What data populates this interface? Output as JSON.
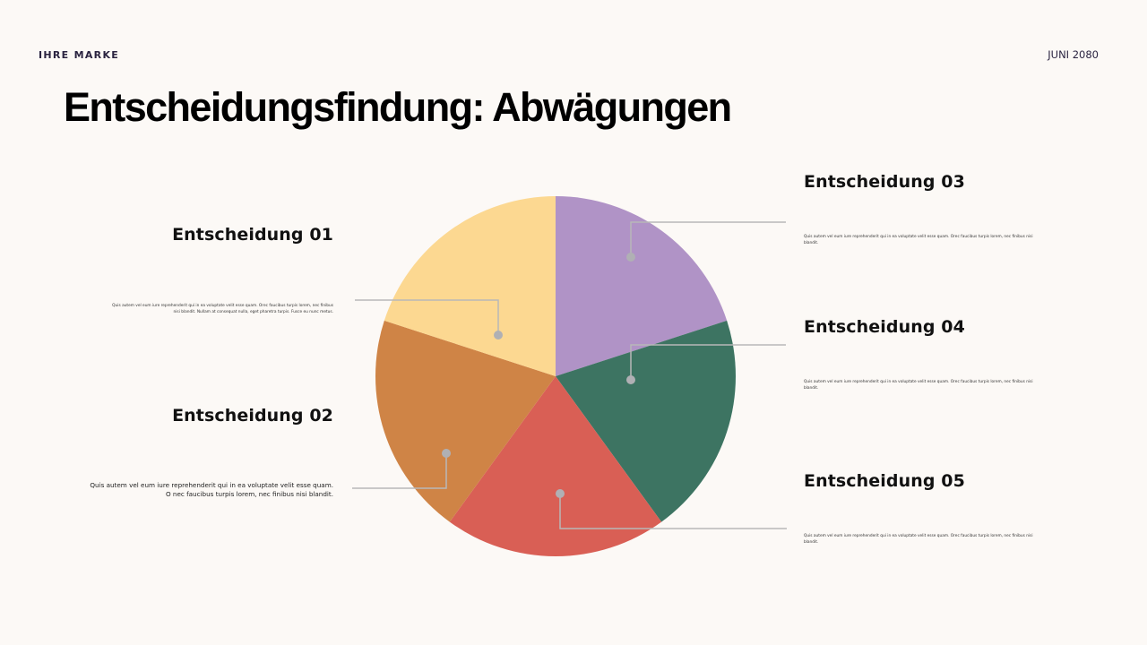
{
  "header": {
    "brand": "IHRE MARKE",
    "date": "JUNI 2080",
    "title": "Entscheidungsfindung: Abwägungen"
  },
  "decisions": [
    {
      "heading": "Entscheidung 01",
      "text": "Quis autem vel eum iure reprehenderit qui in ea voluptate velit esse quam. Orec faucibus turpis lorem, nec finibus nisi blandit. Nullam at consequat nulla, eget pharetra turpis. Fusce eu nunc metus.",
      "color": "#fcd891"
    },
    {
      "heading": "Entscheidung 02",
      "text": "Quis autem vel eum iure reprehenderit qui in ea voluptate velit esse quam. O nec faucibus turpis lorem, nec finibus nisi blandit.",
      "color": "#cf8446"
    },
    {
      "heading": "Entscheidung 03",
      "text": "Quis autem vel eum iure reprehenderit qui in ea voluptate velit esse quam. Orec faucibus turpis lorem, nec finibus nisi blandit.",
      "color": "#b093c6"
    },
    {
      "heading": "Entscheidung 04",
      "text": "Quis autem vel eum iure reprehenderit qui in ea voluptate velit esse quam. Orec faucibus turpis lorem, nec finibus nisi blandit.",
      "color": "#3d7462"
    },
    {
      "heading": "Entscheidung 05",
      "text": "Quis autem vel eum iure reprehenderit qui in ea voluptate velit esse quam. Orec faucibus turpis lorem, nec finibus nisi blandit.",
      "color": "#d95f55"
    }
  ],
  "chart_data": {
    "type": "pie",
    "title": "Entscheidungsfindung: Abwägungen",
    "categories": [
      "Entscheidung 01",
      "Entscheidung 02",
      "Entscheidung 03",
      "Entscheidung 04",
      "Entscheidung 05"
    ],
    "values": [
      20,
      20,
      20,
      20,
      20
    ],
    "colors": [
      "#fcd891",
      "#cf8446",
      "#b093c6",
      "#3d7462",
      "#d95f55"
    ],
    "slice_order_clockwise_from_top": [
      "Entscheidung 03",
      "Entscheidung 04",
      "Entscheidung 05",
      "Entscheidung 02",
      "Entscheidung 01"
    ],
    "legend": "callout labels with leader lines (left: 01, 02; right: 03, 04, 05)",
    "leader_line_color": "#b8b8b8"
  }
}
